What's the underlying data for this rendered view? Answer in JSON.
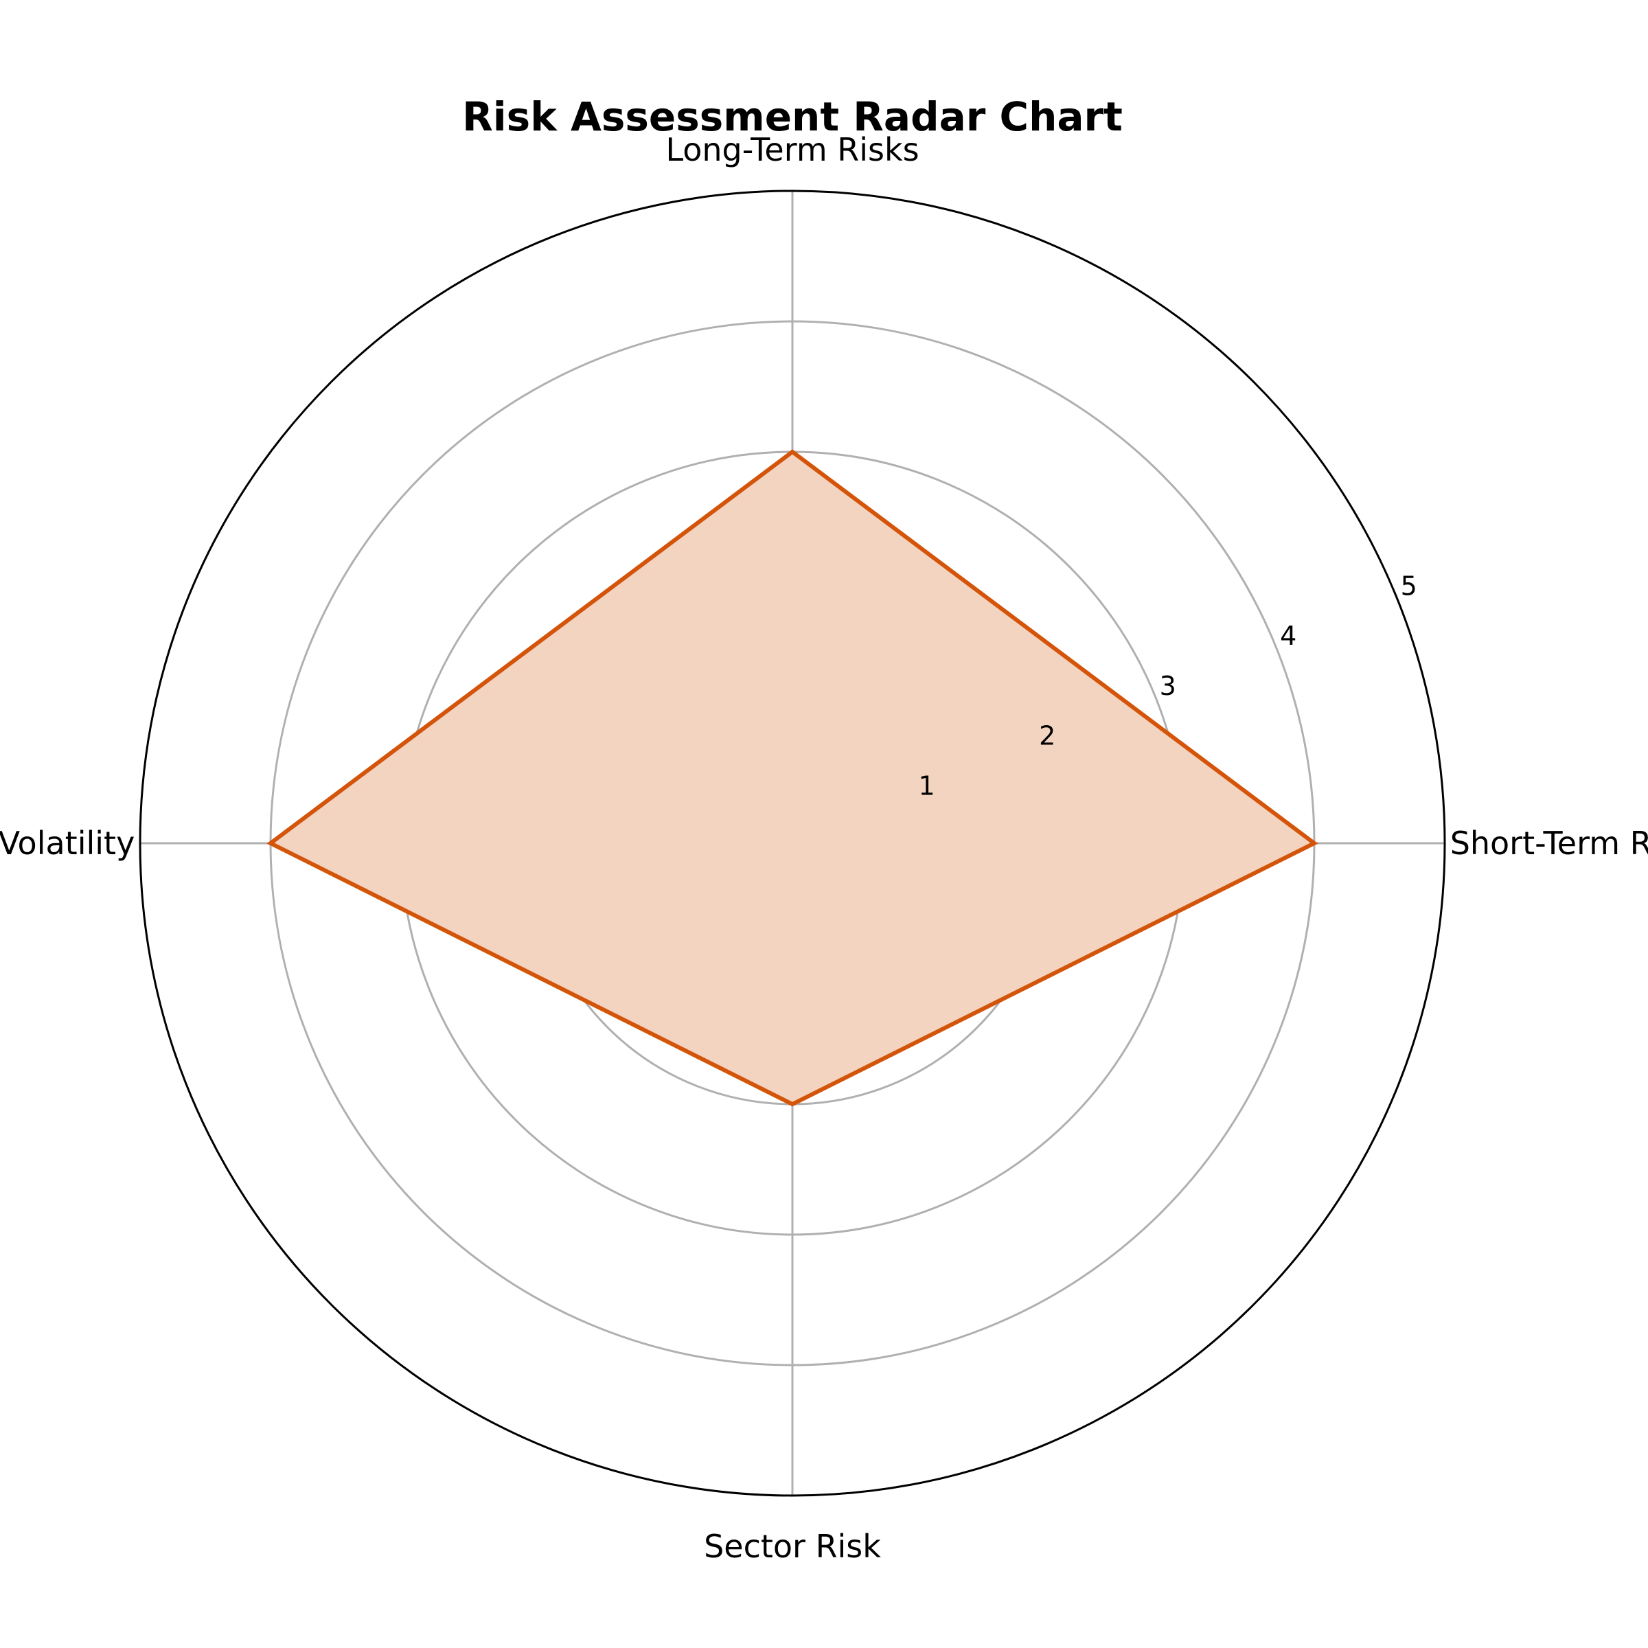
{
  "chart_data": {
    "type": "radar",
    "title": "Risk Assessment Radar Chart",
    "categories": [
      "Short-Term Risks",
      "Long-Term Risks",
      "Volatility",
      "Sector Risk"
    ],
    "series": [
      {
        "values": [
          4,
          3,
          4,
          2
        ],
        "color": "#d4540a",
        "fill_color": "#f2d4c0"
      }
    ],
    "rlim": [
      0,
      5
    ],
    "rticks": [
      "1",
      "2",
      "3",
      "4",
      "5"
    ],
    "grid": true
  }
}
